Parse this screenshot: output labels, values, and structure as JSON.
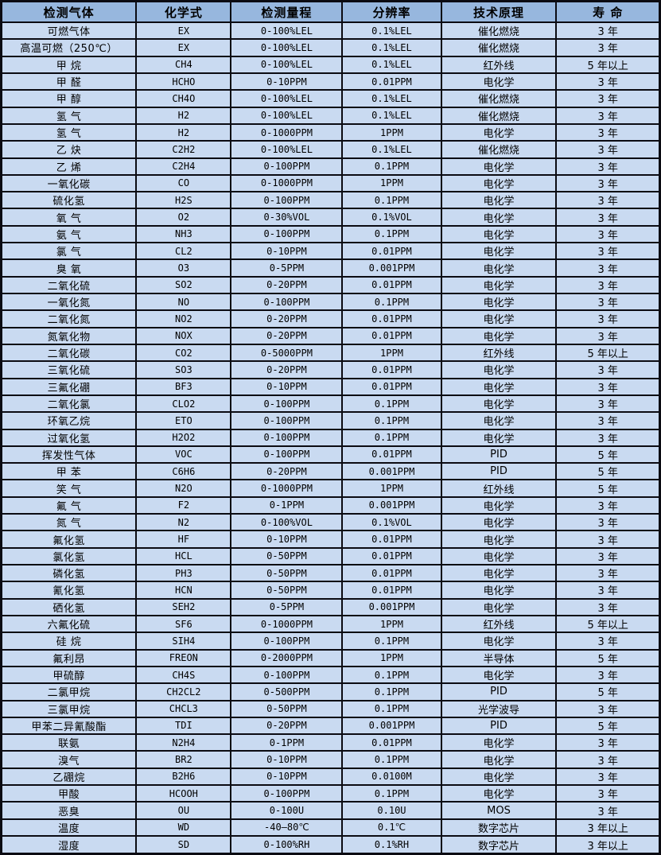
{
  "colors": {
    "header_bg": "#97b7de",
    "row_bg": "#c9daf1",
    "border": "#0b0b12",
    "text": "#000000"
  },
  "table": {
    "columns": [
      "检测气体",
      "化学式",
      "检测量程",
      "分辨率",
      "技术原理",
      "寿 命"
    ],
    "rows": [
      [
        "可燃气体",
        "EX",
        "0-100%LEL",
        "0.1%LEL",
        "催化燃烧",
        "3 年"
      ],
      [
        "高温可燃（250℃）",
        "EX",
        "0-100%LEL",
        "0.1%LEL",
        "催化燃烧",
        "3 年"
      ],
      [
        "甲 烷",
        "CH4",
        "0-100%LEL",
        "0.1%LEL",
        "红外线",
        "5 年以上"
      ],
      [
        "甲 醛",
        "HCHO",
        "0-10PPM",
        "0.01PPM",
        "电化学",
        "3 年"
      ],
      [
        "甲 醇",
        "CH4O",
        "0-100%LEL",
        "0.1%LEL",
        "催化燃烧",
        "3 年"
      ],
      [
        "氢 气",
        "H2",
        "0-100%LEL",
        "0.1%LEL",
        "催化燃烧",
        "3 年"
      ],
      [
        "氢 气",
        "H2",
        "0-1000PPM",
        "1PPM",
        "电化学",
        "3 年"
      ],
      [
        "乙 炔",
        "C2H2",
        "0-100%LEL",
        "0.1%LEL",
        "催化燃烧",
        "3 年"
      ],
      [
        "乙 烯",
        "C2H4",
        "0-100PPM",
        "0.1PPM",
        "电化学",
        "3 年"
      ],
      [
        "一氧化碳",
        "CO",
        "0-1000PPM",
        "1PPM",
        "电化学",
        "3 年"
      ],
      [
        "硫化氢",
        "H2S",
        "0-100PPM",
        "0.1PPM",
        "电化学",
        "3 年"
      ],
      [
        "氧 气",
        "O2",
        "0-30%VOL",
        "0.1%VOL",
        "电化学",
        "3 年"
      ],
      [
        "氨 气",
        "NH3",
        "0-100PPM",
        "0.1PPM",
        "电化学",
        "3 年"
      ],
      [
        "氯 气",
        "CL2",
        "0-10PPM",
        "0.01PPM",
        "电化学",
        "3 年"
      ],
      [
        "臭 氧",
        "O3",
        "0-5PPM",
        "0.001PPM",
        "电化学",
        "3 年"
      ],
      [
        "二氧化硫",
        "SO2",
        "0-20PPM",
        "0.01PPM",
        "电化学",
        "3 年"
      ],
      [
        "一氧化氮",
        "NO",
        "0-100PPM",
        "0.1PPM",
        "电化学",
        "3 年"
      ],
      [
        "二氧化氮",
        "NO2",
        "0-20PPM",
        "0.01PPM",
        "电化学",
        "3 年"
      ],
      [
        "氮氧化物",
        "NOX",
        "0-20PPM",
        "0.01PPM",
        "电化学",
        "3 年"
      ],
      [
        "二氧化碳",
        "CO2",
        "0-5000PPM",
        "1PPM",
        "红外线",
        "5 年以上"
      ],
      [
        "三氧化硫",
        "SO3",
        "0-20PPM",
        "0.01PPM",
        "电化学",
        "3 年"
      ],
      [
        "三氟化硼",
        "BF3",
        "0-10PPM",
        "0.01PPM",
        "电化学",
        "3 年"
      ],
      [
        "二氧化氯",
        "CLO2",
        "0-100PPM",
        "0.1PPM",
        "电化学",
        "3 年"
      ],
      [
        "环氧乙烷",
        "ETO",
        "0-100PPM",
        "0.1PPM",
        "电化学",
        "3 年"
      ],
      [
        "过氧化氢",
        "H2O2",
        "0-100PPM",
        "0.1PPM",
        "电化学",
        "3 年"
      ],
      [
        "挥发性气体",
        "VOC",
        "0-100PPM",
        "0.01PPM",
        "PID",
        "5 年"
      ],
      [
        "甲 苯",
        "C6H6",
        "0-20PPM",
        "0.001PPM",
        "PID",
        "5 年"
      ],
      [
        "笑 气",
        "N2O",
        "0-1000PPM",
        "1PPM",
        "红外线",
        "5 年"
      ],
      [
        "氟 气",
        "F2",
        "0-1PPM",
        "0.001PPM",
        "电化学",
        "3 年"
      ],
      [
        "氮 气",
        "N2",
        "0-100%VOL",
        "0.1%VOL",
        "电化学",
        "3 年"
      ],
      [
        "氟化氢",
        "HF",
        "0-10PPM",
        "0.01PPM",
        "电化学",
        "3 年"
      ],
      [
        "氯化氢",
        "HCL",
        "0-50PPM",
        "0.01PPM",
        "电化学",
        "3 年"
      ],
      [
        "磷化氢",
        "PH3",
        "0-50PPM",
        "0.01PPM",
        "电化学",
        "3 年"
      ],
      [
        "氰化氢",
        "HCN",
        "0-50PPM",
        "0.01PPM",
        "电化学",
        "3 年"
      ],
      [
        "硒化氢",
        "SEH2",
        "0-5PPM",
        "0.001PPM",
        "电化学",
        "3 年"
      ],
      [
        "六氟化硫",
        "SF6",
        "0-1000PPM",
        "1PPM",
        "红外线",
        "5 年以上"
      ],
      [
        "硅 烷",
        "SIH4",
        "0-100PPM",
        "0.1PPM",
        "电化学",
        "3 年"
      ],
      [
        "氟利昂",
        "FREON",
        "0-2000PPM",
        "1PPM",
        "半导体",
        "5 年"
      ],
      [
        "甲硫醇",
        "CH4S",
        "0-100PPM",
        "0.1PPM",
        "电化学",
        "3 年"
      ],
      [
        "二氯甲烷",
        "CH2CL2",
        "0-500PPM",
        "0.1PPM",
        "PID",
        "5 年"
      ],
      [
        "三氯甲烷",
        "CHCL3",
        "0-50PPM",
        "0.1PPM",
        "光学波导",
        "3 年"
      ],
      [
        "甲苯二异氰酸酯",
        "TDI",
        "0-20PPM",
        "0.001PPM",
        "PID",
        "5 年"
      ],
      [
        "联氨",
        "N2H4",
        "0-1PPM",
        "0.01PPM",
        "电化学",
        "3 年"
      ],
      [
        "溴气",
        "BR2",
        "0-10PPM",
        "0.1PPM",
        "电化学",
        "3 年"
      ],
      [
        "乙硼烷",
        "B2H6",
        "0-10PPM",
        "0.0100M",
        "电化学",
        "3 年"
      ],
      [
        "甲酸",
        "HCOOH",
        "0-100PPM",
        "0.1PPM",
        "电化学",
        "3 年"
      ],
      [
        "恶臭",
        "OU",
        "0-100U",
        "0.10U",
        "MOS",
        "3 年"
      ],
      [
        "温度",
        "WD",
        "-40—80℃",
        "0.1℃",
        "数字芯片",
        "3 年以上"
      ],
      [
        "湿度",
        "SD",
        "0-100%RH",
        "0.1%RH",
        "数字芯片",
        "3 年以上"
      ]
    ]
  }
}
